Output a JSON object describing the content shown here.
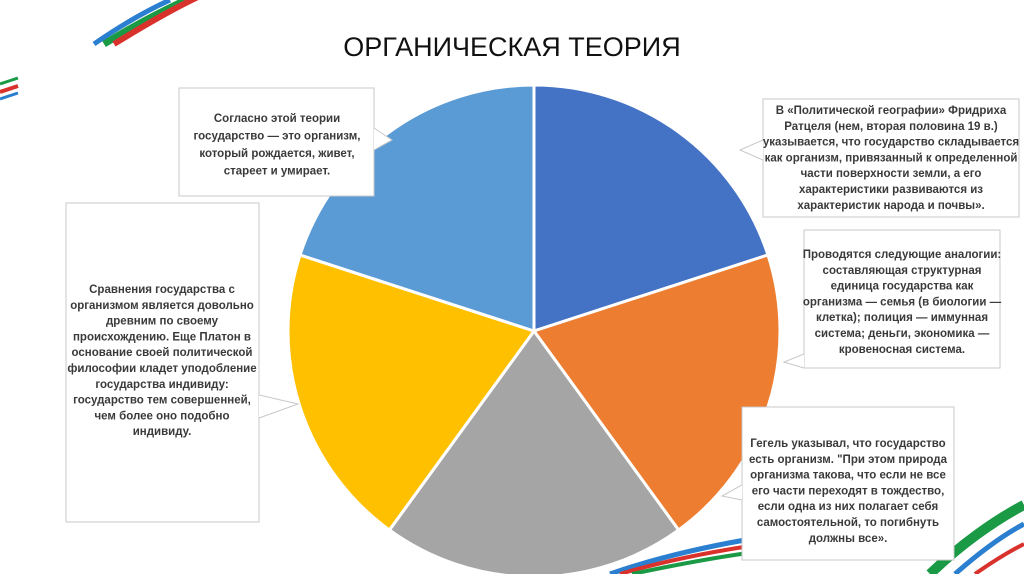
{
  "title": "ОРГАНИЧЕСКАЯ ТЕОРИЯ",
  "colors": {
    "slice_blue": "#4472c4",
    "slice_orange": "#ed7d31",
    "slice_gray": "#a5a5a5",
    "slice_yellow": "#ffc000",
    "slice_lightblue": "#5b9bd5",
    "deco_red": "#d9312b",
    "deco_green": "#1a9a45",
    "deco_blue": "#2a7fd0"
  },
  "callouts": [
    {
      "id": "callout-top-left",
      "lines": [
        "Согласно этой теории",
        "государство — это организм,",
        "который рождается, живет,",
        "стареет и умирает."
      ]
    },
    {
      "id": "callout-top-right",
      "lines": [
        "В «Политической географии» Фридриха",
        "Ратцеля (нем, вторая половина 19 в.)",
        "указывается, что государство складывается",
        "как организм, привязанный к определенной",
        "части поверхности земли, а его",
        "характеристики развиваются из",
        "характеристик народа и почвы»."
      ]
    },
    {
      "id": "callout-right",
      "lines": [
        "Проводятся следующие аналогии:",
        "составляющая структурная",
        "единица государства как",
        "организма — семья (в биологии —",
        "клетка); полиция — иммунная",
        "система; деньги, экономика —",
        "кровеносная система."
      ]
    },
    {
      "id": "callout-bottom-right",
      "lines": [
        "Гегель указывал, что государство",
        "есть организм. \"При этом природа",
        "организма такова, что если не все",
        "его части переходят в тождество,",
        "если одна из них полагает себя",
        "самостоятельной, то погибнуть",
        "должны все»."
      ]
    },
    {
      "id": "callout-left",
      "lines": [
        "Сравнения государства с",
        "организмом является довольно",
        "древним по своему",
        "происхождению. Еще Платон в",
        "основание своей политической",
        "философии кладет уподобление",
        "государства индивиду:",
        "государство тем совершенней,",
        "чем более оно подобно",
        "индивиду."
      ]
    }
  ]
}
